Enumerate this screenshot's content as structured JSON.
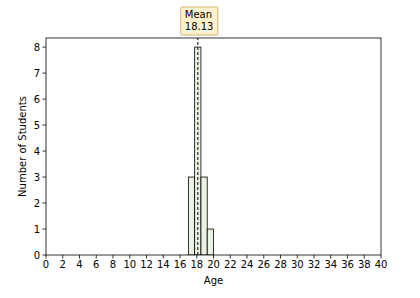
{
  "chart_data": {
    "type": "histogram",
    "x_label": "Age",
    "y_label": "Number of Students",
    "bins": [
      17,
      17.75,
      18.5,
      19.25,
      20
    ],
    "values": [
      3,
      8,
      3,
      1
    ],
    "color": "#eaf2e3",
    "mean": 18.13,
    "mean_label": "Mean",
    "xlim": [
      0,
      40
    ],
    "xticks": [
      0,
      2,
      4,
      6,
      8,
      10,
      12,
      14,
      16,
      18,
      20,
      22,
      24,
      26,
      28,
      30,
      32,
      34,
      36,
      38,
      40
    ],
    "ylim": [
      0,
      8.35
    ],
    "yticks": [
      0,
      1,
      2,
      3,
      4,
      5,
      6,
      7,
      8
    ],
    "grid": false
  }
}
